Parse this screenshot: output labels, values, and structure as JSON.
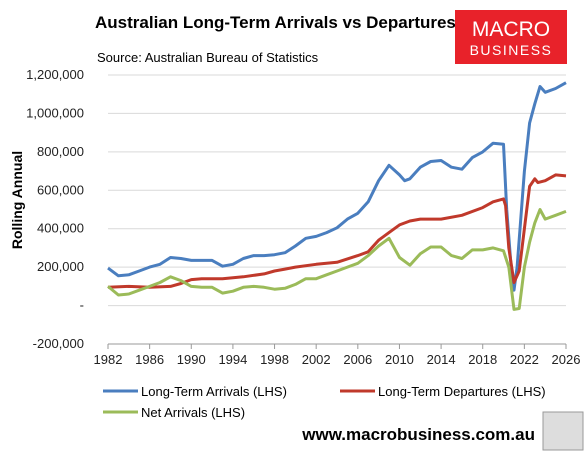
{
  "chart_data": {
    "type": "line",
    "title": "Australian Long-Term Arrivals vs Departures",
    "subtitle": "Source: Australian Bureau of Statistics",
    "y_label": "Rolling Annual",
    "logo": [
      "MACRO",
      "BUSINESS"
    ],
    "footer": "www.macrobusiness.com.au",
    "xlim": [
      1982,
      2026
    ],
    "xticks": [
      1982,
      1986,
      1990,
      1994,
      1998,
      2002,
      2006,
      2010,
      2014,
      2018,
      2022,
      2026
    ],
    "ylim": [
      -200000,
      1200000
    ],
    "yticks": [
      {
        "value": -200000,
        "label": "-200,000"
      },
      {
        "value": 0,
        "label": "-"
      },
      {
        "value": 200000,
        "label": "200,000"
      },
      {
        "value": 400000,
        "label": "400,000"
      },
      {
        "value": 600000,
        "label": "600,000"
      },
      {
        "value": 800000,
        "label": "800,000"
      },
      {
        "value": 1000000,
        "label": "1,000,000"
      },
      {
        "value": 1200000,
        "label": "1,200,000"
      }
    ],
    "grid": true,
    "series": [
      {
        "name": "Long-Term Arrivals (LHS)",
        "color": "#4a7ebf",
        "x": [
          1982,
          1983,
          1984,
          1985,
          1986,
          1987,
          1988,
          1989,
          1990,
          1991,
          1992,
          1993,
          1994,
          1995,
          1996,
          1997,
          1998,
          1999,
          2000,
          2001,
          2002,
          2003,
          2004,
          2005,
          2006,
          2007,
          2008,
          2009,
          2010,
          2010.5,
          2011,
          2012,
          2013,
          2014,
          2015,
          2016,
          2017,
          2018,
          2019,
          2020,
          2020.3,
          2020.8,
          2021,
          2021.3,
          2022,
          2022.5,
          2023,
          2023.5,
          2024,
          2025,
          2026
        ],
        "values": [
          195000,
          155000,
          160000,
          180000,
          200000,
          215000,
          250000,
          245000,
          235000,
          235000,
          235000,
          205000,
          215000,
          245000,
          260000,
          260000,
          265000,
          275000,
          310000,
          350000,
          360000,
          380000,
          405000,
          450000,
          480000,
          540000,
          650000,
          730000,
          680000,
          650000,
          660000,
          720000,
          750000,
          755000,
          720000,
          710000,
          770000,
          800000,
          845000,
          840000,
          500000,
          150000,
          80000,
          200000,
          700000,
          950000,
          1050000,
          1140000,
          1110000,
          1130000,
          1160000
        ]
      },
      {
        "name": "Long-Term Departures (LHS)",
        "color": "#c0392b",
        "x": [
          1982,
          1984,
          1986,
          1988,
          1989,
          1990,
          1991,
          1993,
          1995,
          1997,
          1998,
          1999,
          2000,
          2002,
          2004,
          2006,
          2007,
          2008,
          2009,
          2010,
          2011,
          2012,
          2014,
          2016,
          2018,
          2019,
          2020,
          2020.2,
          2020.5,
          2021,
          2021.5,
          2022,
          2022.5,
          2023,
          2023.3,
          2024,
          2025,
          2026
        ],
        "values": [
          95000,
          100000,
          95000,
          100000,
          115000,
          135000,
          140000,
          140000,
          150000,
          165000,
          180000,
          190000,
          200000,
          215000,
          225000,
          260000,
          280000,
          340000,
          380000,
          420000,
          440000,
          450000,
          450000,
          470000,
          510000,
          540000,
          555000,
          520000,
          300000,
          120000,
          180000,
          400000,
          620000,
          660000,
          640000,
          650000,
          680000,
          675000
        ]
      },
      {
        "name": "Net Arrivals (LHS)",
        "color": "#9bbb59",
        "x": [
          1982,
          1983,
          1984,
          1985,
          1986,
          1987,
          1988,
          1989,
          1990,
          1991,
          1992,
          1993,
          1994,
          1995,
          1996,
          1997,
          1998,
          1999,
          2000,
          2001,
          2002,
          2003,
          2004,
          2005,
          2006,
          2007,
          2008,
          2009,
          2010,
          2011,
          2012,
          2013,
          2014,
          2015,
          2016,
          2017,
          2018,
          2019,
          2020,
          2020.5,
          2021,
          2021.5,
          2022,
          2022.5,
          2023,
          2023.5,
          2024,
          2025,
          2026
        ],
        "values": [
          100000,
          55000,
          60000,
          80000,
          100000,
          120000,
          150000,
          130000,
          100000,
          95000,
          95000,
          65000,
          75000,
          95000,
          100000,
          95000,
          85000,
          90000,
          110000,
          140000,
          140000,
          160000,
          180000,
          200000,
          220000,
          260000,
          310000,
          350000,
          250000,
          210000,
          270000,
          305000,
          305000,
          260000,
          245000,
          290000,
          290000,
          300000,
          285000,
          200000,
          -20000,
          -15000,
          200000,
          330000,
          430000,
          500000,
          450000,
          470000,
          490000
        ]
      }
    ]
  }
}
